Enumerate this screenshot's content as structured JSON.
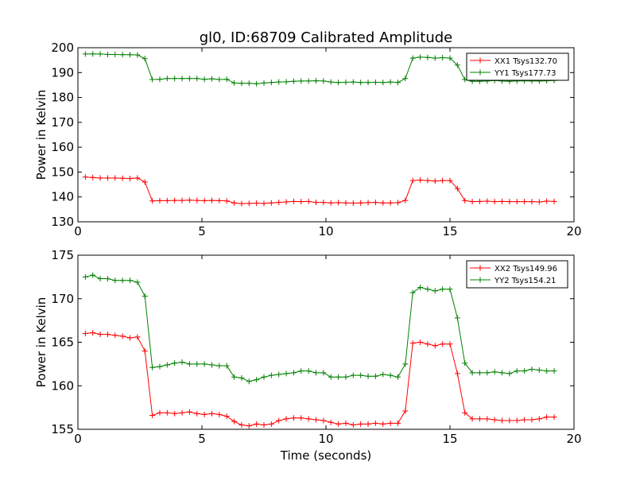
{
  "figure": {
    "title": "gl0, ID:68709 Calibrated Amplitude",
    "xlabel": "Time (seconds)"
  },
  "colors": {
    "red": "#ff0000",
    "green": "#008000"
  },
  "chart_data": [
    {
      "type": "line",
      "title": "gl0, ID:68709 Calibrated Amplitude",
      "xlabel": "",
      "ylabel": "Power in Kelvin",
      "xlim": [
        0,
        20
      ],
      "ylim": [
        130,
        200
      ],
      "xticks": [
        0,
        5,
        10,
        15,
        20
      ],
      "yticks": [
        130,
        140,
        150,
        160,
        170,
        180,
        190,
        200
      ],
      "grid": false,
      "legend": "top-right",
      "x": [
        0.3,
        0.6,
        0.9,
        1.2,
        1.5,
        1.8,
        2.1,
        2.4,
        2.7,
        3.0,
        3.3,
        3.6,
        3.9,
        4.2,
        4.5,
        4.8,
        5.1,
        5.4,
        5.7,
        6.0,
        6.3,
        6.6,
        6.9,
        7.2,
        7.5,
        7.8,
        8.1,
        8.4,
        8.7,
        9.0,
        9.3,
        9.6,
        9.9,
        10.2,
        10.5,
        10.8,
        11.1,
        11.4,
        11.7,
        12.0,
        12.3,
        12.6,
        12.9,
        13.2,
        13.5,
        13.8,
        14.1,
        14.4,
        14.7,
        15.0,
        15.3,
        15.6,
        15.9,
        16.2,
        16.5,
        16.8,
        17.1,
        17.4,
        17.7,
        18.0,
        18.3,
        18.6,
        18.9,
        19.2
      ],
      "series": [
        {
          "name": "XX1 Tsys132.70",
          "color": "#ff0000",
          "values": [
            148.0,
            147.8,
            147.6,
            147.6,
            147.6,
            147.5,
            147.4,
            147.6,
            146.0,
            138.4,
            138.5,
            138.5,
            138.6,
            138.6,
            138.7,
            138.6,
            138.5,
            138.6,
            138.5,
            138.4,
            137.6,
            137.3,
            137.4,
            137.5,
            137.4,
            137.6,
            137.8,
            138.0,
            138.2,
            138.1,
            138.2,
            137.8,
            137.8,
            137.6,
            137.7,
            137.6,
            137.5,
            137.6,
            137.7,
            137.8,
            137.6,
            137.6,
            137.7,
            138.6,
            146.6,
            146.8,
            146.6,
            146.4,
            146.6,
            146.6,
            143.4,
            138.5,
            138.1,
            138.2,
            138.3,
            138.1,
            138.2,
            138.1,
            138.1,
            138.1,
            138.1,
            138.0,
            138.3,
            138.2
          ]
        },
        {
          "name": "YY1 Tsys177.73",
          "color": "#008000",
          "values": [
            197.5,
            197.5,
            197.5,
            197.3,
            197.3,
            197.2,
            197.2,
            197.1,
            195.6,
            187.2,
            187.3,
            187.6,
            187.6,
            187.6,
            187.6,
            187.6,
            187.3,
            187.5,
            187.2,
            187.3,
            185.8,
            185.7,
            185.7,
            185.5,
            185.8,
            186.0,
            186.2,
            186.3,
            186.5,
            186.6,
            186.6,
            186.7,
            186.6,
            186.2,
            186.0,
            186.1,
            186.2,
            186.0,
            186.0,
            186.1,
            186.0,
            186.2,
            186.0,
            187.6,
            195.8,
            196.2,
            196.1,
            195.8,
            196.0,
            195.8,
            193.0,
            187.2,
            186.5,
            186.5,
            186.6,
            186.8,
            186.6,
            186.5,
            186.6,
            186.7,
            186.6,
            186.6,
            186.7,
            186.8
          ]
        }
      ]
    },
    {
      "type": "line",
      "title": "",
      "xlabel": "Time (seconds)",
      "ylabel": "Power in Kelvin",
      "xlim": [
        0,
        20
      ],
      "ylim": [
        155,
        175
      ],
      "xticks": [
        0,
        5,
        10,
        15,
        20
      ],
      "yticks": [
        155,
        160,
        165,
        170,
        175
      ],
      "grid": false,
      "legend": "top-right",
      "x": [
        0.3,
        0.6,
        0.9,
        1.2,
        1.5,
        1.8,
        2.1,
        2.4,
        2.7,
        3.0,
        3.3,
        3.6,
        3.9,
        4.2,
        4.5,
        4.8,
        5.1,
        5.4,
        5.7,
        6.0,
        6.3,
        6.6,
        6.9,
        7.2,
        7.5,
        7.8,
        8.1,
        8.4,
        8.7,
        9.0,
        9.3,
        9.6,
        9.9,
        10.2,
        10.5,
        10.8,
        11.1,
        11.4,
        11.7,
        12.0,
        12.3,
        12.6,
        12.9,
        13.2,
        13.5,
        13.8,
        14.1,
        14.4,
        14.7,
        15.0,
        15.3,
        15.6,
        15.9,
        16.2,
        16.5,
        16.8,
        17.1,
        17.4,
        17.7,
        18.0,
        18.3,
        18.6,
        18.9,
        19.2
      ],
      "series": [
        {
          "name": "XX2 Tsys149.96",
          "color": "#ff0000",
          "values": [
            166.0,
            166.1,
            165.9,
            165.9,
            165.8,
            165.7,
            165.5,
            165.6,
            164.0,
            156.6,
            156.9,
            156.9,
            156.8,
            156.9,
            157.0,
            156.8,
            156.7,
            156.8,
            156.7,
            156.5,
            155.9,
            155.5,
            155.4,
            155.6,
            155.5,
            155.6,
            156.0,
            156.2,
            156.3,
            156.3,
            156.2,
            156.1,
            156.0,
            155.8,
            155.6,
            155.7,
            155.5,
            155.6,
            155.6,
            155.7,
            155.6,
            155.7,
            155.7,
            157.1,
            164.9,
            165.0,
            164.8,
            164.6,
            164.8,
            164.8,
            161.4,
            156.9,
            156.2,
            156.2,
            156.2,
            156.1,
            156.0,
            156.0,
            156.0,
            156.1,
            156.1,
            156.2,
            156.4,
            156.4
          ]
        },
        {
          "name": "YY2 Tsys154.21",
          "color": "#008000",
          "values": [
            172.5,
            172.7,
            172.3,
            172.3,
            172.1,
            172.1,
            172.1,
            171.9,
            170.3,
            162.1,
            162.2,
            162.4,
            162.6,
            162.7,
            162.5,
            162.5,
            162.5,
            162.4,
            162.3,
            162.3,
            161.0,
            160.9,
            160.5,
            160.7,
            161.0,
            161.2,
            161.3,
            161.4,
            161.5,
            161.7,
            161.7,
            161.5,
            161.5,
            161.0,
            161.0,
            161.0,
            161.2,
            161.2,
            161.1,
            161.1,
            161.3,
            161.2,
            161.0,
            162.5,
            170.7,
            171.3,
            171.1,
            170.9,
            171.1,
            171.1,
            167.8,
            162.6,
            161.5,
            161.5,
            161.5,
            161.6,
            161.5,
            161.4,
            161.7,
            161.7,
            161.9,
            161.8,
            161.7,
            161.7
          ]
        }
      ]
    }
  ]
}
